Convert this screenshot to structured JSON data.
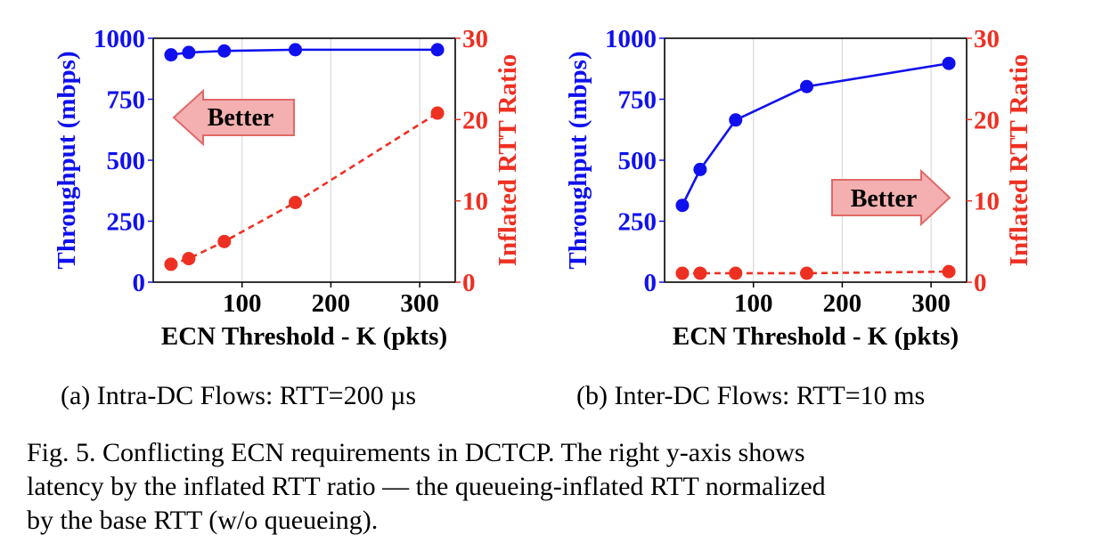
{
  "colors": {
    "throughput": "#1010ee",
    "rtt": "#ee3022",
    "arrow_fill": "#f4b0b0",
    "arrow_stroke": "#e06868",
    "grid": "#d8d8d8"
  },
  "chart_data": [
    {
      "type": "line",
      "xlabel": "ECN Threshold - K (pkts)",
      "ylabel_left": "Throughput (mbps)",
      "ylabel_right": "Inflated RTT Ratio",
      "xlim": [
        0,
        340
      ],
      "ylim_left": [
        0,
        1000
      ],
      "ylim_right": [
        0,
        30
      ],
      "xticks": [
        "100",
        "200",
        "300"
      ],
      "yticks_left": [
        "0",
        "250",
        "500",
        "750",
        "1000"
      ],
      "yticks_right": [
        "0",
        "10",
        "20",
        "30"
      ],
      "grid": "vertical",
      "x": [
        20,
        40,
        80,
        160,
        320
      ],
      "series": [
        {
          "axis": "left",
          "style": "solid",
          "values": [
            932,
            942,
            948,
            953,
            953
          ]
        },
        {
          "axis": "right",
          "style": "dashed",
          "values": [
            2.2,
            2.9,
            5.0,
            9.8,
            20.8
          ]
        }
      ],
      "annotation": {
        "text": "Better",
        "direction": "left"
      },
      "subcaption": "(a) Intra-DC Flows: RTT=200 µs"
    },
    {
      "type": "line",
      "xlabel": "ECN Threshold - K (pkts)",
      "ylabel_left": "Throughput (mbps)",
      "ylabel_right": "Inflated RTT Ratio",
      "xlim": [
        0,
        340
      ],
      "ylim_left": [
        0,
        1000
      ],
      "ylim_right": [
        0,
        30
      ],
      "xticks": [
        "100",
        "200",
        "300"
      ],
      "yticks_left": [
        "0",
        "250",
        "500",
        "750",
        "1000"
      ],
      "yticks_right": [
        "0",
        "10",
        "20",
        "30"
      ],
      "grid": "vertical",
      "x": [
        20,
        40,
        80,
        160,
        320
      ],
      "series": [
        {
          "axis": "left",
          "style": "solid",
          "values": [
            315,
            462,
            665,
            802,
            897
          ]
        },
        {
          "axis": "right",
          "style": "dashed",
          "values": [
            1.1,
            1.1,
            1.1,
            1.1,
            1.3
          ]
        }
      ],
      "annotation": {
        "text": "Better",
        "direction": "right"
      },
      "subcaption": "(b) Inter-DC Flows: RTT=10 ms"
    }
  ],
  "caption": {
    "line1": "Fig. 5.  Conflicting ECN requirements in DCTCP. The right y-axis shows",
    "line2": "latency by the inflated RTT ratio — the queueing-inflated RTT normalized",
    "line3": "by the base RTT (w/o queueing)."
  }
}
